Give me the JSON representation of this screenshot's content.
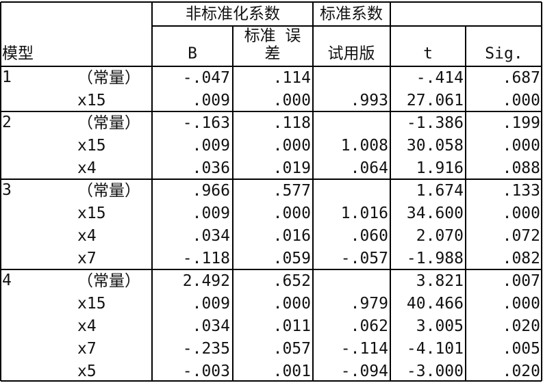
{
  "table": {
    "header": {
      "model": "模型",
      "unstandardized": "非标准化系数",
      "standardized": "标准系数",
      "columns": {
        "b": "B",
        "std_error": [
          "标准 误",
          "差"
        ],
        "beta": "试用版",
        "t": "t",
        "sig": "Sig."
      }
    },
    "groups": [
      {
        "model": "1",
        "rows": [
          {
            "label": "（常量）",
            "b": "-.047",
            "std_error": ".114",
            "beta": null,
            "t": "-.414",
            "sig": ".687"
          },
          {
            "label": "x15",
            "b": ".009",
            "std_error": ".000",
            "beta": ".993",
            "t": "27.061",
            "sig": ".000"
          }
        ]
      },
      {
        "model": "2",
        "rows": [
          {
            "label": "（常量）",
            "b": "-.163",
            "std_error": ".118",
            "beta": null,
            "t": "-1.386",
            "sig": ".199"
          },
          {
            "label": "x15",
            "b": ".009",
            "std_error": ".000",
            "beta": "1.008",
            "t": "30.058",
            "sig": ".000"
          },
          {
            "label": "x4",
            "b": ".036",
            "std_error": ".019",
            "beta": ".064",
            "t": "1.916",
            "sig": ".088"
          }
        ]
      },
      {
        "model": "3",
        "rows": [
          {
            "label": "（常量）",
            "b": ".966",
            "std_error": ".577",
            "beta": null,
            "t": "1.674",
            "sig": ".133"
          },
          {
            "label": "x15",
            "b": ".009",
            "std_error": ".000",
            "beta": "1.016",
            "t": "34.600",
            "sig": ".000"
          },
          {
            "label": "x4",
            "b": ".034",
            "std_error": ".016",
            "beta": ".060",
            "t": "2.070",
            "sig": ".072"
          },
          {
            "label": "x7",
            "b": "-.118",
            "std_error": ".059",
            "beta": "-.057",
            "t": "-1.988",
            "sig": ".082"
          }
        ]
      },
      {
        "model": "4",
        "rows": [
          {
            "label": "（常量）",
            "b": "2.492",
            "std_error": ".652",
            "beta": null,
            "t": "3.821",
            "sig": ".007"
          },
          {
            "label": "x15",
            "b": ".009",
            "std_error": ".000",
            "beta": ".979",
            "t": "40.466",
            "sig": ".000"
          },
          {
            "label": "x4",
            "b": ".034",
            "std_error": ".011",
            "beta": ".062",
            "t": "3.005",
            "sig": ".020"
          },
          {
            "label": "x7",
            "b": "-.235",
            "std_error": ".057",
            "beta": "-.114",
            "t": "-4.101",
            "sig": ".005"
          },
          {
            "label": "x5",
            "b": "-.003",
            "std_error": ".001",
            "beta": "-.094",
            "t": "-3.000",
            "sig": ".020"
          }
        ]
      }
    ]
  }
}
